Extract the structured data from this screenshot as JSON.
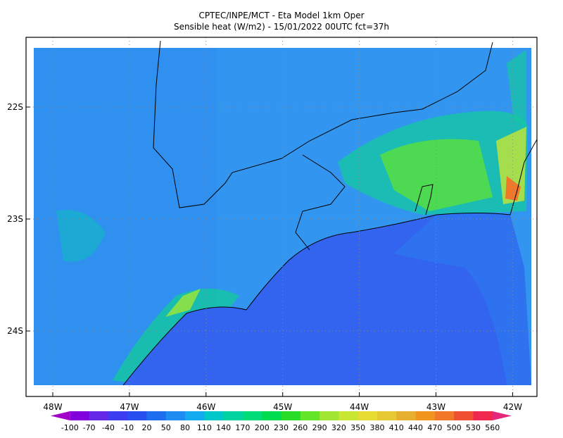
{
  "title": [
    "CPTEC/INPE/MCT -  Eta Model 1km Oper",
    "Sensible heat (W/m2) - 15/01/2022 00UTC fct=37h"
  ],
  "lat_ticks": [
    "22S",
    "23S",
    "24S"
  ],
  "lon_ticks": [
    "48W",
    "47W",
    "46W",
    "45W",
    "44W",
    "43W",
    "42W"
  ],
  "colorbar": {
    "labels": [
      "-100",
      "-70",
      "-40",
      "-10",
      "20",
      "50",
      "80",
      "110",
      "140",
      "170",
      "200",
      "230",
      "260",
      "290",
      "320",
      "350",
      "380",
      "410",
      "440",
      "470",
      "500",
      "530",
      "560"
    ],
    "colors": [
      "#a000c8",
      "#8200dc",
      "#6428e6",
      "#3c3cf0",
      "#2850f0",
      "#1e6ef0",
      "#1e8cf0",
      "#14aaf0",
      "#00c8c8",
      "#00d2a0",
      "#00dc78",
      "#00dc50",
      "#28dc28",
      "#64e628",
      "#a0e632",
      "#c8e632",
      "#e6dc32",
      "#e6c832",
      "#e6af2d",
      "#f0961e",
      "#f07828",
      "#f05032",
      "#f02850",
      "#e6287a"
    ]
  }
}
